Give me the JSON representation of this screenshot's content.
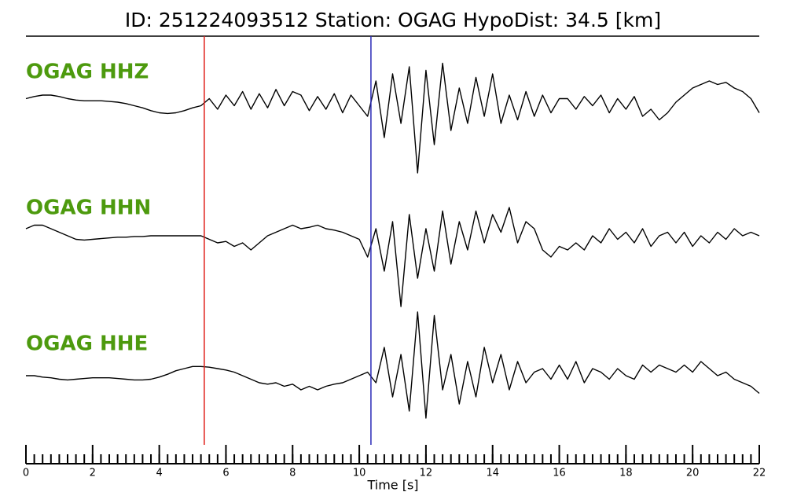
{
  "chart_data": {
    "type": "seismogram",
    "title": "ID: 251224093512   Station: OGAG   HypoDist:    34.5 [km]",
    "xlabel": "Time [s]",
    "xlim": [
      0,
      22
    ],
    "xticks": [
      0,
      2,
      4,
      6,
      8,
      10,
      12,
      14,
      16,
      18,
      20,
      22
    ],
    "minor_tick_step": 0.25,
    "label_color": "#4d9a0e",
    "markers": [
      {
        "x": 5.35,
        "color": "#e0201a"
      },
      {
        "x": 10.35,
        "color": "#2a2ab8"
      }
    ],
    "x": [
      0,
      0.25,
      0.5,
      0.75,
      1,
      1.25,
      1.5,
      1.75,
      2,
      2.25,
      2.5,
      2.75,
      3,
      3.25,
      3.5,
      3.75,
      4,
      4.25,
      4.5,
      4.75,
      5,
      5.25,
      5.5,
      5.75,
      6,
      6.25,
      6.5,
      6.75,
      7,
      7.25,
      7.5,
      7.75,
      8,
      8.25,
      8.5,
      8.75,
      9,
      9.25,
      9.5,
      9.75,
      10,
      10.25,
      10.5,
      10.75,
      11,
      11.25,
      11.5,
      11.75,
      12,
      12.25,
      12.5,
      12.75,
      13,
      13.25,
      13.5,
      13.75,
      14,
      14.25,
      14.5,
      14.75,
      15,
      15.25,
      15.5,
      15.75,
      16,
      16.25,
      16.5,
      16.75,
      17,
      17.25,
      17.5,
      17.75,
      18,
      18.25,
      18.5,
      18.75,
      19,
      19.25,
      19.5,
      19.75,
      20,
      20.25,
      20.5,
      20.75,
      21,
      21.25,
      21.5,
      21.75,
      22
    ],
    "series": [
      {
        "name": "OGAG HHZ",
        "color": "#000000",
        "values": [
          0.05,
          0.08,
          0.1,
          0.1,
          0.08,
          0.05,
          0.03,
          0.02,
          0.02,
          0.02,
          0.01,
          0,
          -0.02,
          -0.05,
          -0.08,
          -0.12,
          -0.15,
          -0.16,
          -0.15,
          -0.12,
          -0.08,
          -0.05,
          0.05,
          -0.1,
          0.1,
          -0.05,
          0.15,
          -0.1,
          0.12,
          -0.08,
          0.18,
          -0.05,
          0.15,
          0.1,
          -0.12,
          0.08,
          -0.1,
          0.12,
          -0.15,
          0.1,
          -0.05,
          -0.2,
          0.3,
          -0.5,
          0.4,
          -0.3,
          0.5,
          -1.0,
          0.45,
          -0.6,
          0.55,
          -0.4,
          0.2,
          -0.3,
          0.35,
          -0.2,
          0.4,
          -0.3,
          0.1,
          -0.25,
          0.15,
          -0.2,
          0.1,
          -0.15,
          0.05,
          0.05,
          -0.1,
          0.08,
          -0.05,
          0.1,
          -0.15,
          0.05,
          -0.1,
          0.08,
          -0.2,
          -0.1,
          -0.25,
          -0.15,
          0,
          0.1,
          0.2,
          0.25,
          0.3,
          0.25,
          0.28,
          0.2,
          0.15,
          0.05,
          -0.15
        ]
      },
      {
        "name": "OGAG HHN",
        "color": "#000000",
        "values": [
          0.1,
          0.15,
          0.15,
          0.1,
          0.05,
          0,
          -0.05,
          -0.06,
          -0.05,
          -0.04,
          -0.03,
          -0.02,
          -0.02,
          -0.01,
          -0.01,
          0,
          0,
          0,
          0,
          0,
          0,
          0,
          -0.05,
          -0.1,
          -0.08,
          -0.15,
          -0.1,
          -0.2,
          -0.1,
          0,
          0.05,
          0.1,
          0.15,
          0.1,
          0.12,
          0.15,
          0.1,
          0.08,
          0.05,
          0,
          -0.05,
          -0.3,
          0.1,
          -0.5,
          0.2,
          -1.0,
          0.3,
          -0.6,
          0.1,
          -0.5,
          0.35,
          -0.4,
          0.2,
          -0.2,
          0.35,
          -0.1,
          0.3,
          0.05,
          0.4,
          -0.1,
          0.2,
          0.1,
          -0.2,
          -0.3,
          -0.15,
          -0.2,
          -0.1,
          -0.2,
          0,
          -0.1,
          0.1,
          -0.05,
          0.05,
          -0.1,
          0.1,
          -0.15,
          0,
          0.05,
          -0.1,
          0.05,
          -0.15,
          0,
          -0.1,
          0.05,
          -0.05,
          0.1,
          0,
          0.05,
          0
        ]
      },
      {
        "name": "OGAG HHE",
        "color": "#000000",
        "values": [
          0,
          0,
          -0.02,
          -0.03,
          -0.05,
          -0.06,
          -0.05,
          -0.04,
          -0.03,
          -0.03,
          -0.03,
          -0.04,
          -0.05,
          -0.06,
          -0.06,
          -0.05,
          -0.02,
          0.02,
          0.07,
          0.1,
          0.13,
          0.13,
          0.12,
          0.1,
          0.08,
          0.05,
          0,
          -0.05,
          -0.1,
          -0.12,
          -0.1,
          -0.15,
          -0.12,
          -0.2,
          -0.15,
          -0.2,
          -0.15,
          -0.12,
          -0.1,
          -0.05,
          0,
          0.05,
          -0.1,
          0.4,
          -0.3,
          0.3,
          -0.5,
          0.9,
          -0.6,
          0.85,
          -0.2,
          0.3,
          -0.4,
          0.2,
          -0.3,
          0.4,
          -0.1,
          0.3,
          -0.2,
          0.2,
          -0.1,
          0.05,
          0.1,
          -0.05,
          0.15,
          -0.05,
          0.2,
          -0.1,
          0.1,
          0.05,
          -0.05,
          0.1,
          0,
          -0.05,
          0.15,
          0.05,
          0.15,
          0.1,
          0.05,
          0.15,
          0.05,
          0.2,
          0.1,
          0,
          0.05,
          -0.05,
          -0.1,
          -0.15,
          -0.25
        ]
      }
    ]
  }
}
